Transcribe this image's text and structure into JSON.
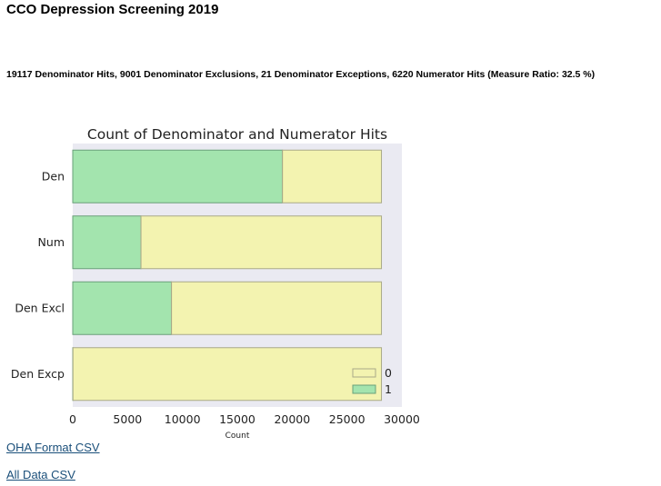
{
  "page": {
    "title": "CCO Depression Screening 2019",
    "summary": "19117 Denominator Hits, 9001 Denominator Exclusions, 21 Denominator Exceptions, 6220 Numerator Hits (Measure Ratio: 32.5 %)"
  },
  "links": {
    "oha_csv": "OHA Format CSV",
    "all_csv": "All Data CSV"
  },
  "colors": {
    "series_0": "#f3f3b0",
    "series_1": "#a3e4ae",
    "edge_0": "#aaaa88",
    "edge_1": "#6aa07a",
    "plot_bg": "#eaeaf2"
  },
  "chart_data": {
    "type": "bar",
    "orientation": "horizontal",
    "stacked": true,
    "title": "Count of Denominator and Numerator Hits",
    "xlabel": "Count",
    "ylabel": "",
    "categories": [
      "Den",
      "Num",
      "Den Excl",
      "Den Excp"
    ],
    "series": [
      {
        "name": "1",
        "values": [
          19117,
          6220,
          9001,
          21
        ]
      },
      {
        "name": "0",
        "values": [
          9021,
          21918,
          19137,
          28117
        ]
      }
    ],
    "xlim": [
      0,
      30000
    ],
    "xticks": [
      "0",
      "5000",
      "10000",
      "15000",
      "20000",
      "25000",
      "30000"
    ],
    "legend": {
      "position": "lower-right",
      "order": [
        "0",
        "1"
      ]
    },
    "grid": false
  }
}
